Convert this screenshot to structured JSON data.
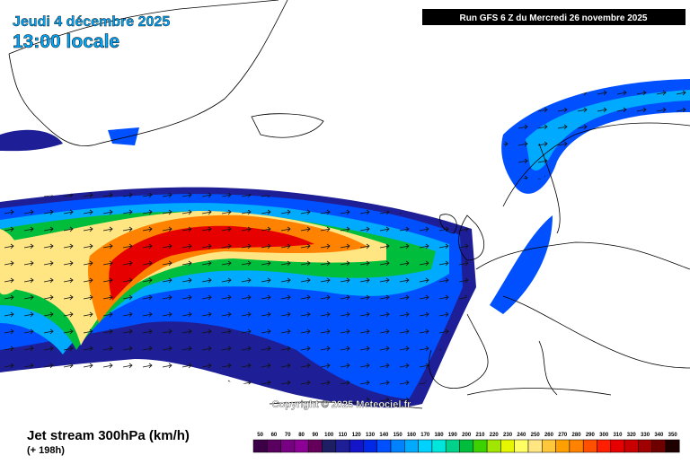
{
  "header": {
    "date": "Jeudi 4 décembre 2025",
    "time": "13:00 locale",
    "run": "Run GFS 6 Z du Mercredi 26 novembre 2025"
  },
  "copyright": "Copyright © 2025 Meteociel.fr",
  "footer": {
    "title": "Jet stream 300hPa (km/h)",
    "lead": "(+ 198h)"
  },
  "legend": {
    "items": [
      {
        "value": 50,
        "color": "#3c0046"
      },
      {
        "value": 60,
        "color": "#5a005f"
      },
      {
        "value": 70,
        "color": "#780082"
      },
      {
        "value": 80,
        "color": "#8c0096"
      },
      {
        "value": 90,
        "color": "#64005a"
      },
      {
        "value": 100,
        "color": "#1e1e64"
      },
      {
        "value": 110,
        "color": "#1e1e96"
      },
      {
        "value": 120,
        "color": "#1414c8"
      },
      {
        "value": 130,
        "color": "#0028e6"
      },
      {
        "value": 140,
        "color": "#0050ff"
      },
      {
        "value": 150,
        "color": "#0082ff"
      },
      {
        "value": 160,
        "color": "#00aaff"
      },
      {
        "value": 170,
        "color": "#00d2ff"
      },
      {
        "value": 180,
        "color": "#00e6dc"
      },
      {
        "value": 190,
        "color": "#00d28c"
      },
      {
        "value": 200,
        "color": "#00be3c"
      },
      {
        "value": 210,
        "color": "#3cd200"
      },
      {
        "value": 220,
        "color": "#a0e600"
      },
      {
        "value": 230,
        "color": "#e6f500"
      },
      {
        "value": 240,
        "color": "#ffff64"
      },
      {
        "value": 250,
        "color": "#ffe682"
      },
      {
        "value": 260,
        "color": "#ffc83c"
      },
      {
        "value": 270,
        "color": "#ffa000"
      },
      {
        "value": 280,
        "color": "#ff8200"
      },
      {
        "value": 290,
        "color": "#ff5000"
      },
      {
        "value": 300,
        "color": "#ff1e00"
      },
      {
        "value": 310,
        "color": "#e60000"
      },
      {
        "value": 320,
        "color": "#c80000"
      },
      {
        "value": 330,
        "color": "#a00000"
      },
      {
        "value": 340,
        "color": "#6e0000"
      },
      {
        "value": 350,
        "color": "#1e0000"
      }
    ]
  }
}
